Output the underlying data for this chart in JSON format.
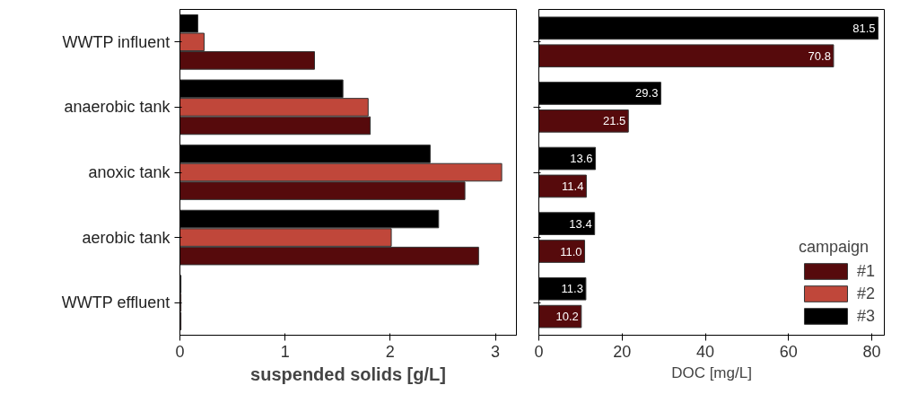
{
  "chart_data": [
    {
      "type": "bar",
      "orientation": "horizontal",
      "xlabel": "suspended solids [g/L]",
      "categories": [
        "WWTP influent",
        "anaerobic tank",
        "anoxic tank",
        "aerobic tank",
        "WWTP effluent"
      ],
      "xlim": [
        0,
        3.2
      ],
      "xticks": [
        0,
        1,
        2,
        3
      ],
      "series": [
        {
          "color": "#560a0c",
          "values": [
            1.28,
            1.81,
            2.71,
            2.84,
            0.01
          ]
        },
        {
          "color": "#c0473a",
          "values": [
            0.23,
            1.79,
            3.06,
            2.01,
            0.01
          ]
        },
        {
          "color": "#000000",
          "values": [
            0.17,
            1.55,
            2.38,
            2.46,
            0.01
          ]
        }
      ]
    },
    {
      "type": "bar",
      "orientation": "horizontal",
      "xlabel": "DOC [mg/L]",
      "categories": [
        null,
        null,
        null,
        null,
        null
      ],
      "tick_labels": "x",
      "xlim": [
        0,
        83
      ],
      "xticks": [
        0,
        20,
        40,
        60,
        80
      ],
      "legend": "bottom right",
      "legend_title": "campaign",
      "series": [
        {
          "name": "#1",
          "color": "#560a0c",
          "values": [
            70.8,
            21.5,
            11.4,
            11.0,
            10.2
          ],
          "value_labels": [
            "70.8",
            "21.5",
            "11.4",
            "11.0",
            "10.2"
          ]
        },
        {
          "name": "#2",
          "color": "#c0473a",
          "values": [
            null,
            null,
            null,
            null,
            null
          ]
        },
        {
          "name": "#3",
          "color": "#000000",
          "values": [
            81.5,
            29.3,
            13.6,
            13.4,
            11.3
          ],
          "value_labels": [
            "81.5",
            "29.3",
            "13.6",
            "13.4",
            "11.3"
          ]
        }
      ]
    }
  ]
}
